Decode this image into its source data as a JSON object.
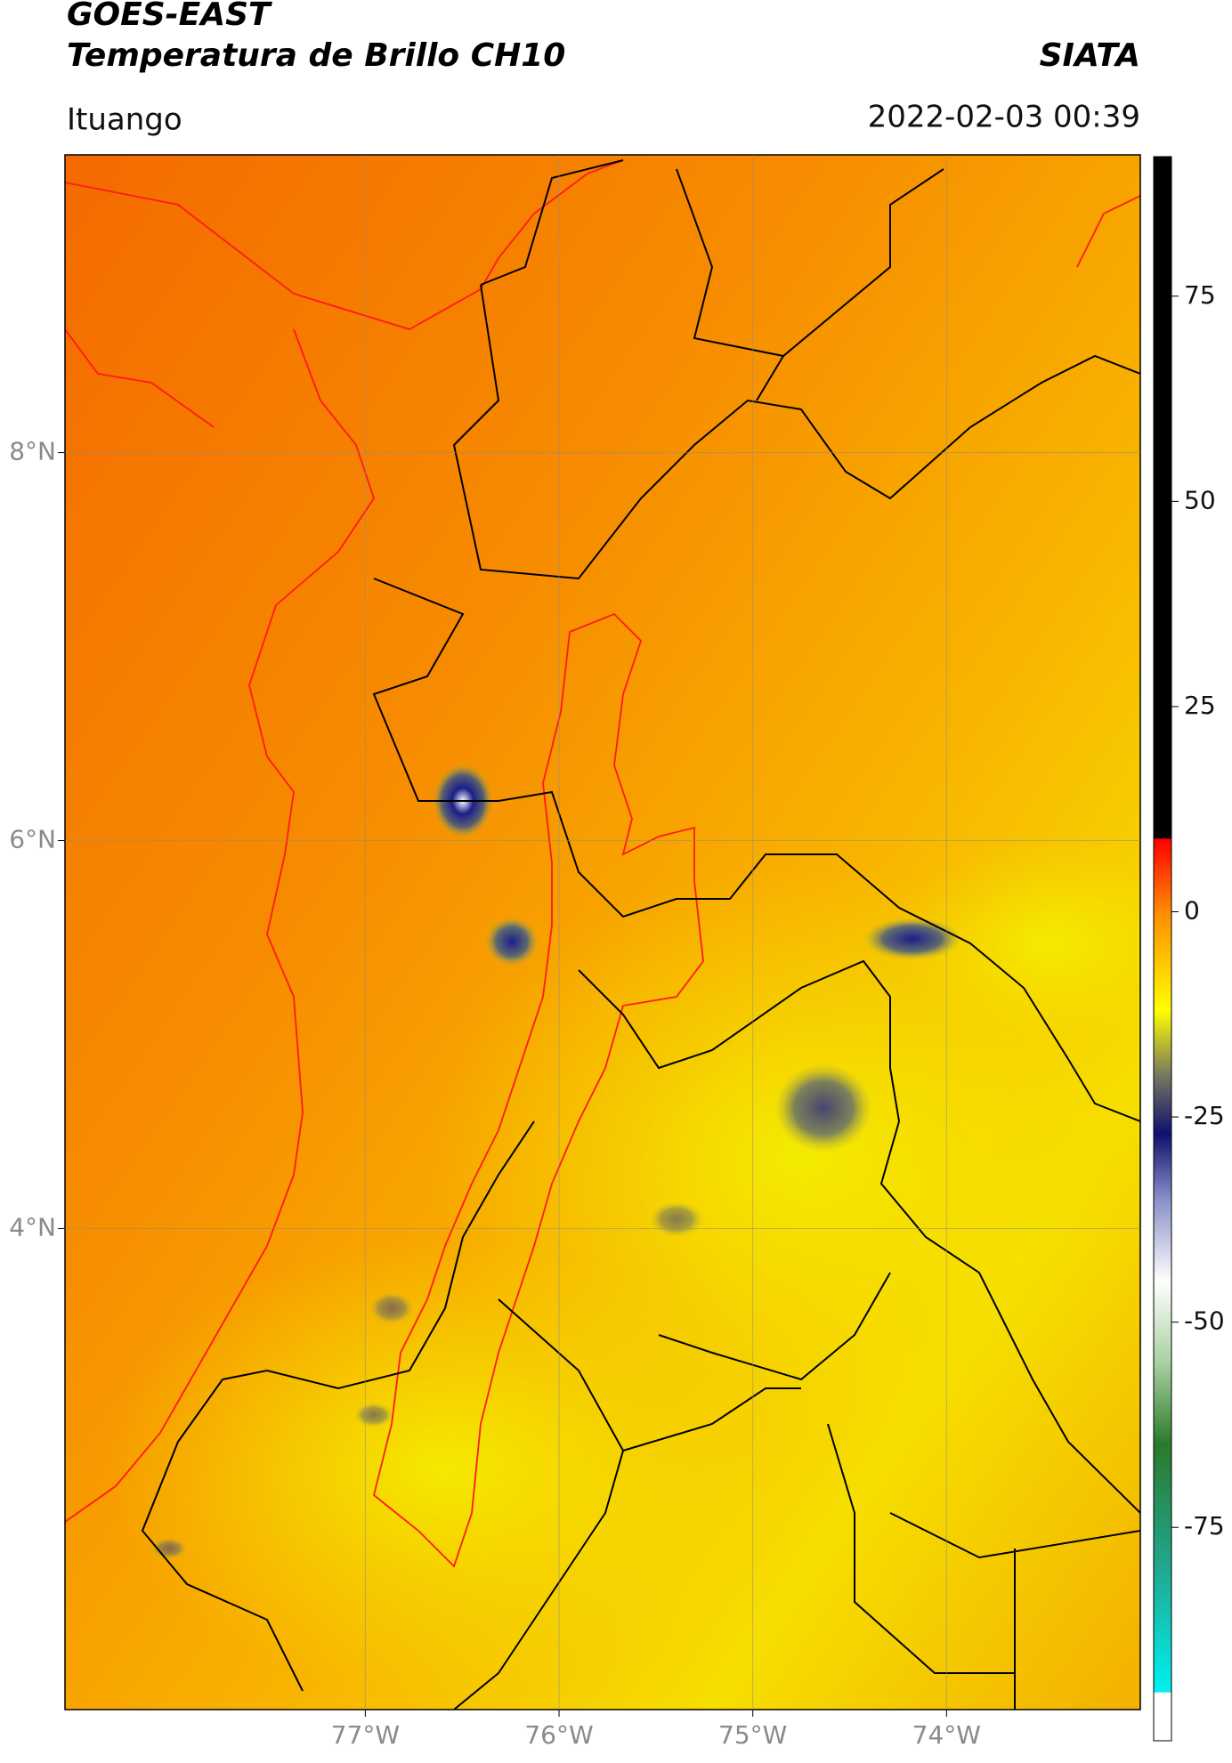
{
  "header": {
    "title_line1": "GOES-EAST",
    "title_line2": "Temperatura de Brillo CH10",
    "source": "SIATA",
    "location": "Ituango",
    "datetime": "2022-02-03 00:39"
  },
  "chart_data": {
    "type": "map",
    "xlim": [
      -78.55,
      -73.0
    ],
    "ylim": [
      1.52,
      9.535
    ],
    "xticks": [
      {
        "value": -77,
        "label": "77°W"
      },
      {
        "value": -76,
        "label": "76°W"
      },
      {
        "value": -75,
        "label": "75°W"
      },
      {
        "value": -74,
        "label": "74°W"
      }
    ],
    "yticks": [
      {
        "value": 4,
        "label": "4°N"
      },
      {
        "value": 6,
        "label": "6°N"
      },
      {
        "value": 8,
        "label": "8°N"
      }
    ],
    "grid": true,
    "colorbar": {
      "lim": [
        -101,
        92
      ],
      "ticks": [
        75,
        50,
        25,
        0,
        -25,
        -50,
        -75
      ]
    }
  }
}
